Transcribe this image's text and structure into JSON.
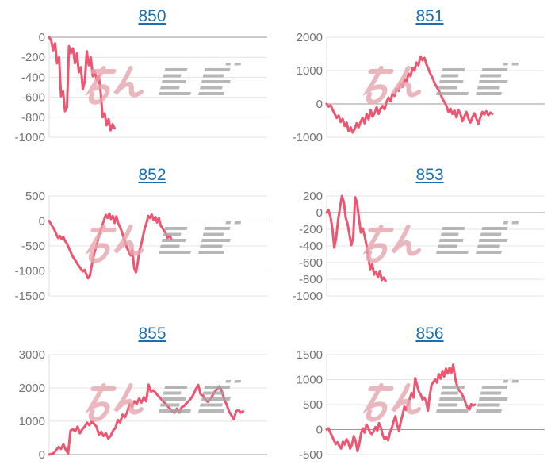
{
  "styles": {
    "background": "#ffffff",
    "line_color": "#ee5570",
    "title_color": "#1e6dad",
    "tick_color": "#757575",
    "grid_color": "#e4e4e4",
    "zero_line_color": "#9a9a9a",
    "axis_color": "#dcdcdc",
    "watermark_pink": "#e7a6ae",
    "watermark_gray": "#a6a6a6"
  },
  "watermark": {
    "text": "みんレポ",
    "pink_text": "みん",
    "gray_text": "レポ"
  },
  "chart_data": [
    {
      "type": "line",
      "title": "850",
      "ylim": [
        -1000,
        0
      ],
      "yticks": [
        0,
        -200,
        -400,
        -600,
        -800,
        -1000
      ],
      "x_extent": 0.3,
      "values": [
        0,
        -30,
        -130,
        -60,
        -260,
        -200,
        -590,
        -540,
        -740,
        -700,
        -90,
        -160,
        -110,
        -260,
        -160,
        -350,
        -300,
        -520,
        -440,
        -140,
        -280,
        -200,
        -390,
        -340,
        -430,
        -380,
        -550,
        -800,
        -760,
        -880,
        -820,
        -930,
        -870,
        -910
      ]
    },
    {
      "type": "line",
      "title": "851",
      "ylim": [
        -1000,
        2000
      ],
      "yticks": [
        2000,
        1000,
        0,
        -1000
      ],
      "x_extent": 0.76,
      "values": [
        0,
        -80,
        -40,
        -180,
        -300,
        -420,
        -350,
        -540,
        -450,
        -660,
        -560,
        -820,
        -700,
        -860,
        -760,
        -580,
        -700,
        -540,
        -420,
        -580,
        -300,
        -460,
        -180,
        -380,
        -280,
        -100,
        -300,
        -140,
        -60,
        -160,
        60,
        190,
        80,
        310,
        240,
        450,
        390,
        590,
        510,
        750,
        670,
        910,
        830,
        1080,
        1000,
        1240,
        1160,
        1420,
        1310,
        1380,
        1180,
        1050,
        900,
        780,
        630,
        520,
        420,
        300,
        160,
        60,
        -60,
        -240,
        -140,
        -300,
        -200,
        -400,
        -180,
        -300,
        -520,
        -380,
        -240,
        -440,
        -560,
        -400,
        -280,
        -440,
        -600,
        -400,
        -240,
        -320,
        -220,
        -340,
        -260,
        -300
      ]
    },
    {
      "type": "line",
      "title": "852",
      "ylim": [
        -1500,
        500
      ],
      "yticks": [
        500,
        0,
        -500,
        -1000,
        -1500
      ],
      "x_extent": 0.56,
      "values": [
        0,
        -60,
        -120,
        -180,
        -260,
        -340,
        -300,
        -360,
        -320,
        -400,
        -450,
        -530,
        -610,
        -690,
        -750,
        -800,
        -860,
        -910,
        -960,
        -1010,
        -980,
        -1070,
        -1150,
        -1100,
        -900,
        -720,
        -580,
        -470,
        -300,
        -200,
        -90,
        20,
        120,
        60,
        150,
        40,
        100,
        -40,
        90,
        -40,
        -120,
        -210,
        -320,
        -430,
        -540,
        -610,
        -690,
        -580,
        -930,
        -1030,
        -850,
        -600,
        -470,
        -310,
        -150,
        -40,
        100,
        60,
        130,
        20,
        80,
        -30,
        60,
        -90,
        -140,
        -200,
        -250,
        -340,
        -290,
        -360
      ]
    },
    {
      "type": "line",
      "title": "853",
      "ylim": [
        -1000,
        200
      ],
      "yticks": [
        200,
        0,
        -200,
        -400,
        -600,
        -800,
        -1000
      ],
      "x_extent": 0.27,
      "values": [
        0,
        30,
        -50,
        -190,
        -420,
        -300,
        -90,
        60,
        200,
        130,
        -60,
        -130,
        -260,
        -390,
        -300,
        185,
        120,
        -65,
        -240,
        -190,
        -280,
        -390,
        -550,
        -680,
        -620,
        -745,
        -710,
        -775,
        -700,
        -810,
        -780,
        -820
      ]
    },
    {
      "type": "line",
      "title": "855",
      "ylim": [
        0,
        3000
      ],
      "yticks": [
        3000,
        2000,
        1000,
        0
      ],
      "x_extent": 0.89,
      "values": [
        0,
        20,
        50,
        140,
        230,
        170,
        310,
        150,
        30,
        720,
        760,
        700,
        840,
        640,
        760,
        840,
        960,
        880,
        1000,
        920,
        840,
        600,
        680,
        560,
        640,
        480,
        560,
        720,
        800,
        1040,
        960,
        1200,
        1120,
        1280,
        1520,
        1440,
        1600,
        1520,
        1680,
        1560,
        1720,
        1600,
        2100,
        1890,
        1930,
        1850,
        1770,
        1690,
        1610,
        1540,
        1460,
        1380,
        1300,
        1260,
        1380,
        1260,
        1420,
        1460,
        1540,
        1610,
        1690,
        1810,
        1970,
        2090,
        1810,
        1770,
        1650,
        1580,
        1650,
        1770,
        1890,
        1970,
        2050,
        1890,
        1650,
        1500,
        1300,
        1180,
        1060,
        1300,
        1340,
        1260,
        1300
      ]
    },
    {
      "type": "line",
      "title": "856",
      "ylim": [
        -500,
        1500
      ],
      "yticks": [
        1500,
        1000,
        500,
        0,
        -500
      ],
      "x_extent": 0.68,
      "values": [
        0,
        25,
        -60,
        -130,
        -210,
        -290,
        -250,
        -330,
        -380,
        -240,
        -300,
        -190,
        -260,
        -380,
        -300,
        -130,
        -230,
        -430,
        -300,
        -80,
        25,
        -60,
        100,
        30,
        -55,
        -90,
        -30,
        50,
        -20,
        130,
        40,
        -110,
        -190,
        -150,
        -215,
        -60,
        25,
        160,
        270,
        90,
        -25,
        160,
        300,
        460,
        390,
        510,
        620,
        730,
        640,
        1030,
        890,
        755,
        700,
        600,
        640,
        570,
        380,
        680,
        890,
        950,
        1000,
        940,
        1110,
        1020,
        1160,
        1060,
        1220,
        1120,
        1240,
        1140,
        1300,
        1050,
        890,
        800,
        755,
        700,
        620,
        510,
        440,
        405,
        510,
        480,
        500
      ]
    }
  ]
}
